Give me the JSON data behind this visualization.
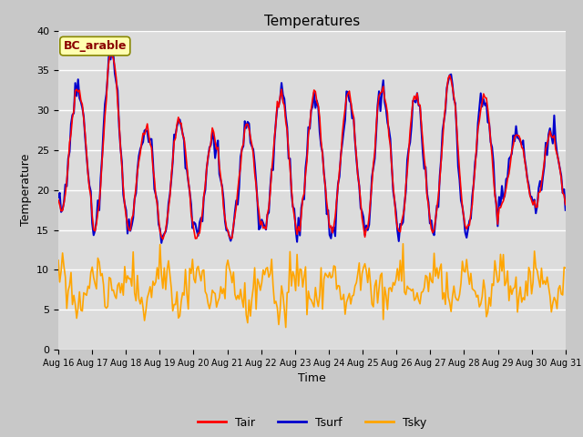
{
  "title": "Temperatures",
  "xlabel": "Time",
  "ylabel": "Temperature",
  "ylim": [
    0,
    40
  ],
  "n_days": 15,
  "hours_per_day": 24,
  "legend_label": "BC_arable",
  "tair_color": "#FF0000",
  "tsurf_color": "#0000CD",
  "tsky_color": "#FFA500",
  "bg_color": "#DCDCDC",
  "fig_bg": "#C8C8C8",
  "start_day": 16,
  "end_day": 31,
  "month": "Aug",
  "xtick_days": [
    16,
    17,
    18,
    19,
    20,
    21,
    22,
    23,
    24,
    25,
    26,
    27,
    28,
    29,
    30,
    31
  ],
  "grid_color": "white",
  "legend_fontsize": 9,
  "title_fontsize": 11,
  "annotation_fontsize": 9,
  "lw_air": 1.2,
  "lw_surf": 1.5,
  "lw_sky": 1.2
}
